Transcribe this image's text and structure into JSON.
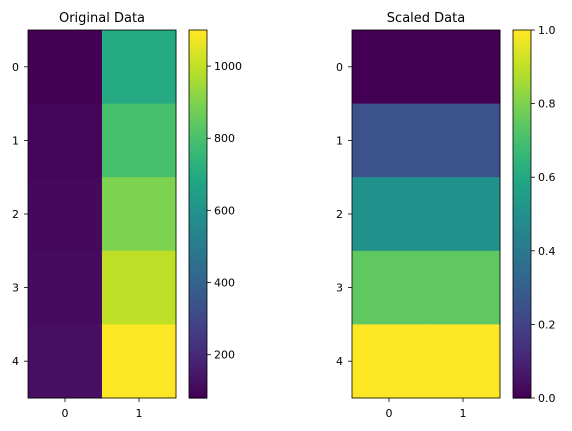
{
  "chart_data": [
    {
      "type": "heatmap",
      "title": "Original Data",
      "colormap": "viridis",
      "x_categories": [
        "0",
        "1"
      ],
      "y_categories": [
        "0",
        "1",
        "2",
        "3",
        "4"
      ],
      "values": [
        [
          80,
          700
        ],
        [
          90,
          800
        ],
        [
          100,
          900
        ],
        [
          110,
          1000
        ],
        [
          120,
          1100
        ]
      ],
      "vmin": 80,
      "vmax": 1100,
      "colorbar_ticks": [
        "200",
        "400",
        "600",
        "800",
        "1000"
      ],
      "colorbar_tick_values": [
        200,
        400,
        600,
        800,
        1000
      ]
    },
    {
      "type": "heatmap",
      "title": "Scaled Data",
      "colormap": "viridis",
      "x_categories": [
        "0",
        "1"
      ],
      "y_categories": [
        "0",
        "1",
        "2",
        "3",
        "4"
      ],
      "values": [
        [
          0.0,
          0.0
        ],
        [
          0.25,
          0.25
        ],
        [
          0.5,
          0.5
        ],
        [
          0.75,
          0.75
        ],
        [
          1.0,
          1.0
        ]
      ],
      "vmin": 0,
      "vmax": 1,
      "colorbar_ticks": [
        "0.0",
        "0.2",
        "0.4",
        "0.6",
        "0.8",
        "1.0"
      ],
      "colorbar_tick_values": [
        0,
        0.2,
        0.4,
        0.6,
        0.8,
        1.0
      ]
    }
  ]
}
